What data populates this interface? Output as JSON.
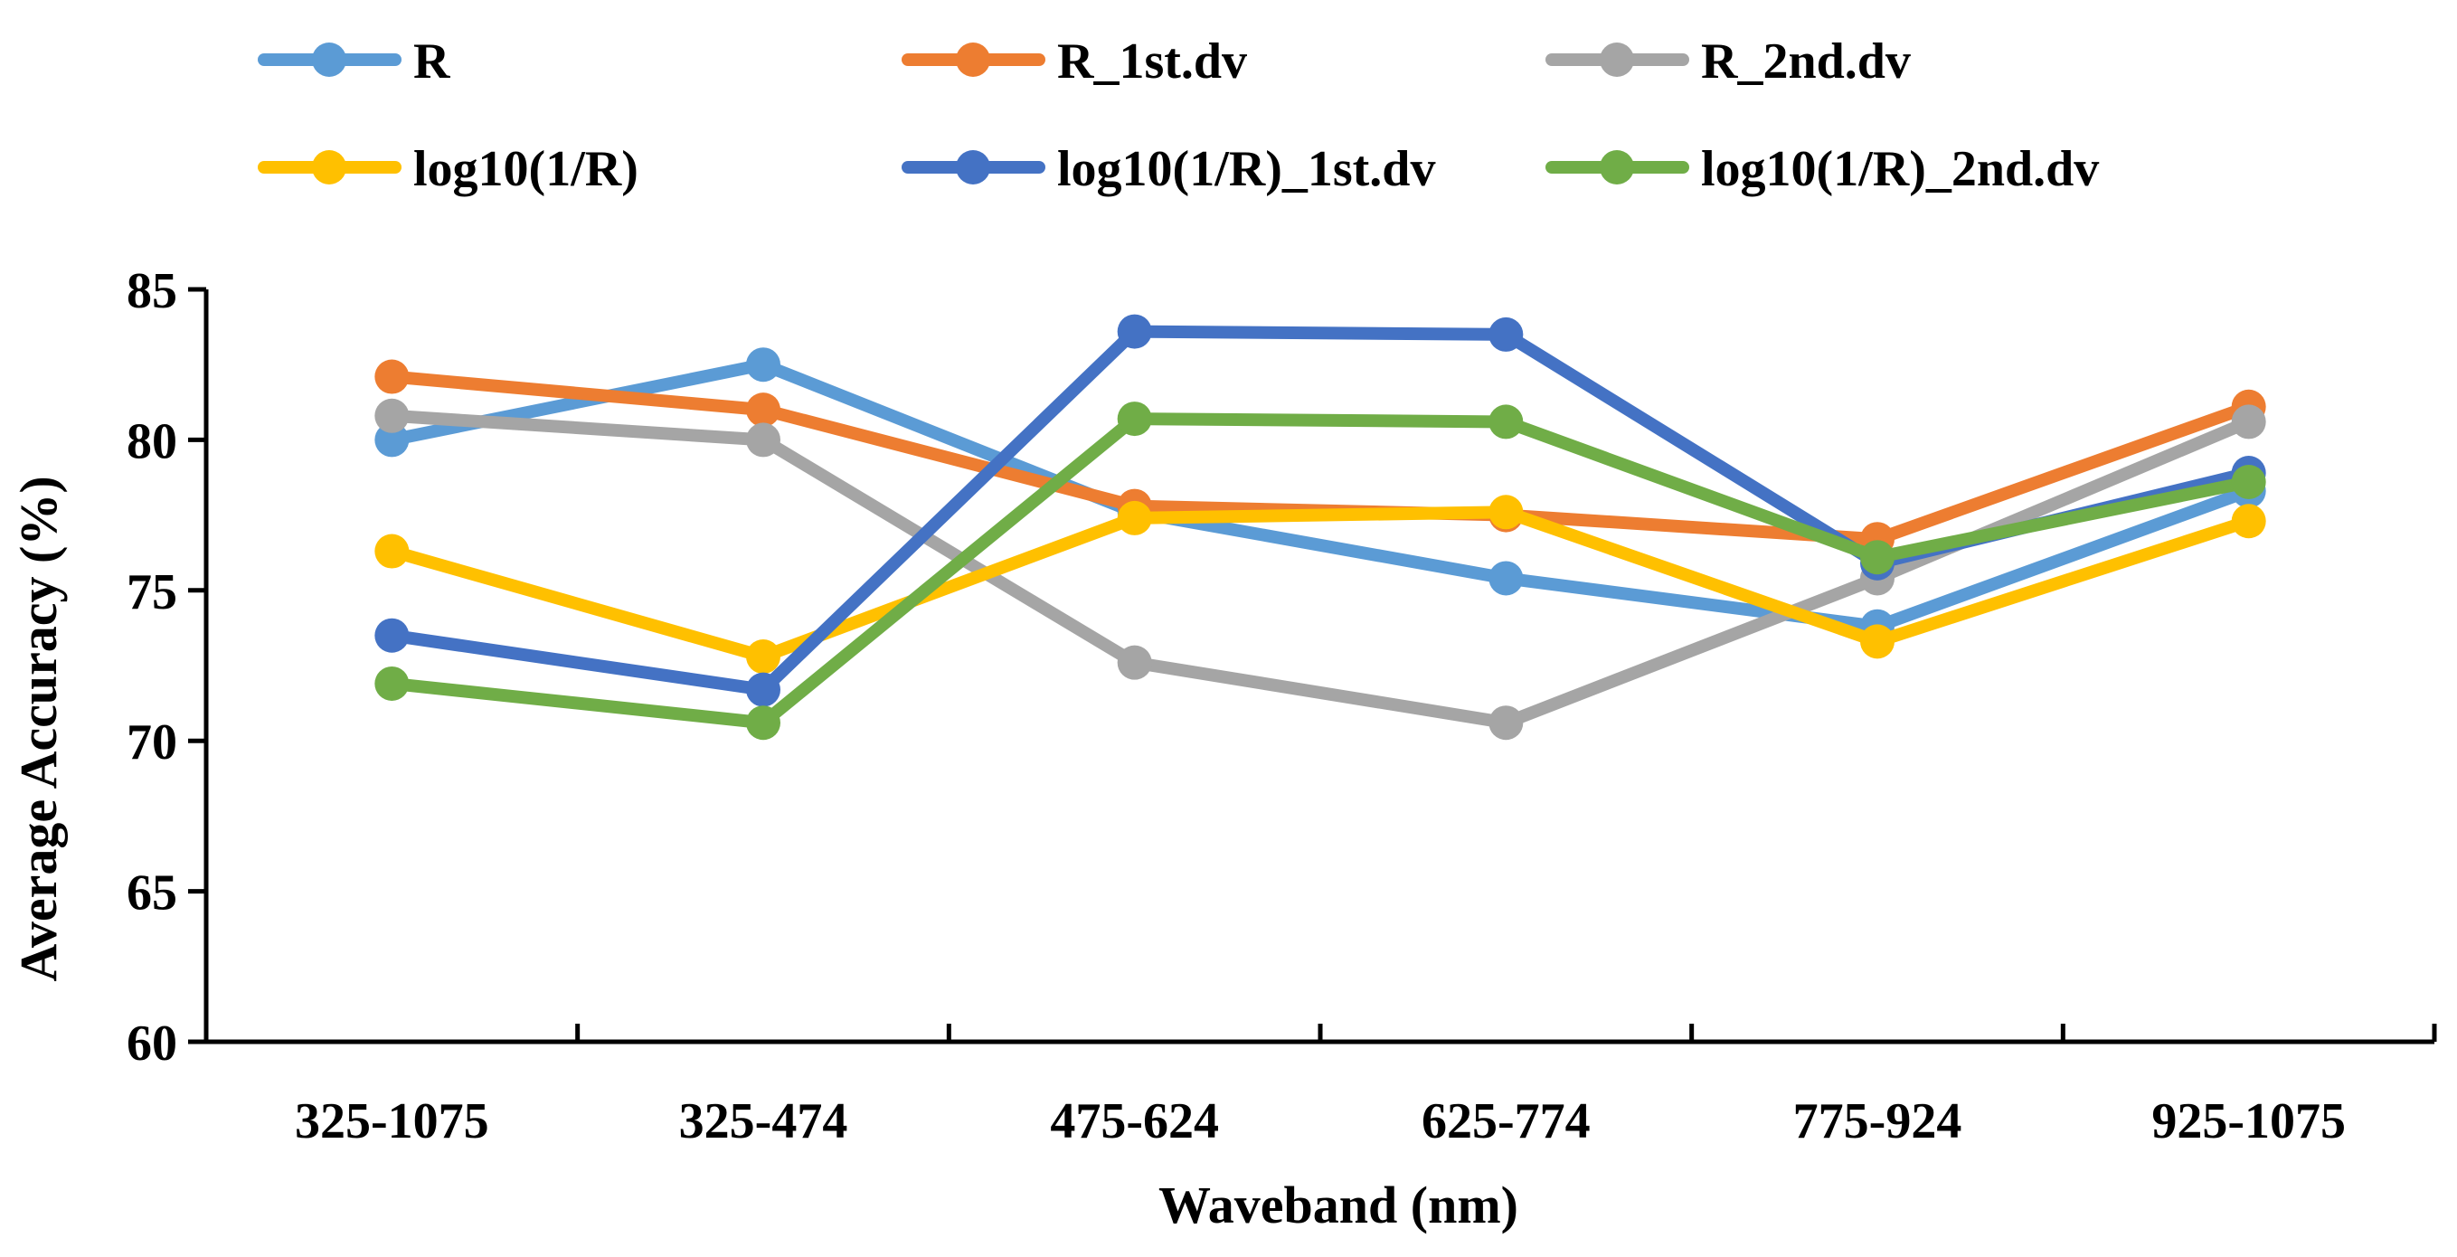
{
  "chart_data": {
    "type": "line",
    "title": "",
    "xlabel": "Waveband (nm)",
    "ylabel": "Average Accuracy (%)",
    "ylim": [
      60,
      85
    ],
    "yticks": [
      60,
      65,
      70,
      75,
      80,
      85
    ],
    "grid": false,
    "legend_position": "top",
    "categories": [
      "325-1075",
      "325-474",
      "475-624",
      "625-774",
      "775-924",
      "925-1075"
    ],
    "series": [
      {
        "name": "R",
        "color": "#5B9BD5",
        "values": [
          80.0,
          82.5,
          77.6,
          75.4,
          73.8,
          78.3
        ]
      },
      {
        "name": "R_1st.dv",
        "color": "#ED7D31",
        "values": [
          82.1,
          81.0,
          77.8,
          77.5,
          76.7,
          81.1
        ]
      },
      {
        "name": "R_2nd.dv",
        "color": "#A5A5A5",
        "values": [
          80.8,
          80.0,
          72.6,
          70.6,
          75.4,
          80.6
        ]
      },
      {
        "name": "log10(1/R)",
        "color": "#FFC000",
        "values": [
          76.3,
          72.8,
          77.4,
          77.6,
          73.3,
          77.3
        ]
      },
      {
        "name": "log10(1/R)_1st.dv",
        "color": "#4472C4",
        "values": [
          73.5,
          71.7,
          83.6,
          83.5,
          75.9,
          78.9
        ]
      },
      {
        "name": "log10(1/R)_2nd.dv",
        "color": "#70AD47",
        "values": [
          71.9,
          70.6,
          80.7,
          80.6,
          76.1,
          78.6
        ]
      }
    ]
  }
}
